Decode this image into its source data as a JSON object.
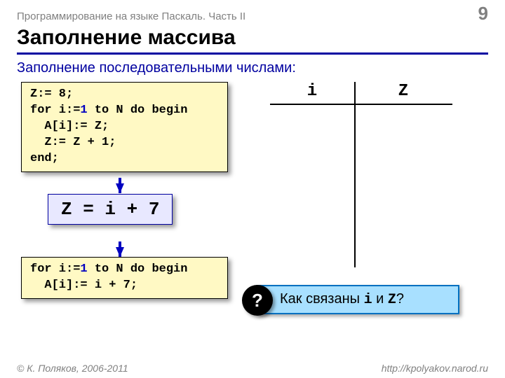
{
  "header": {
    "running_title": "Программирование на языке Паскаль. Часть II",
    "page_number": "9"
  },
  "title": "Заполнение массива",
  "subtitle": "Заполнение последовательными числами:",
  "code1": {
    "l1a": "Z:= 8;",
    "l2a": "for i:=",
    "l2b": "1",
    "l2c": " to N do begin",
    "l3": "  A[i]:= Z;",
    "l4": "  Z:= Z + 1;",
    "l5": "end;"
  },
  "formula": "Z = i + 7",
  "code2": {
    "l1a": "for i:=",
    "l1b": "1",
    "l1c": " to N do begin",
    "l2": "  A[i]:= i + 7;"
  },
  "trace": {
    "col1": "i",
    "col2": "Z"
  },
  "callout": {
    "badge": "?",
    "t1": "Как связаны ",
    "m1": "i",
    "t2": " и ",
    "m2": "Z",
    "t3": "?"
  },
  "footer": {
    "left": "© К. Поляков, 2006-2011",
    "right": "http://kpolyakov.narod.ru"
  },
  "colors": {
    "rule": "#0000a0",
    "code_bg": "#fff9c4",
    "formula_bg": "#e8e8ff",
    "callout_bg": "#a8e0ff",
    "callout_border": "#0070c0"
  }
}
